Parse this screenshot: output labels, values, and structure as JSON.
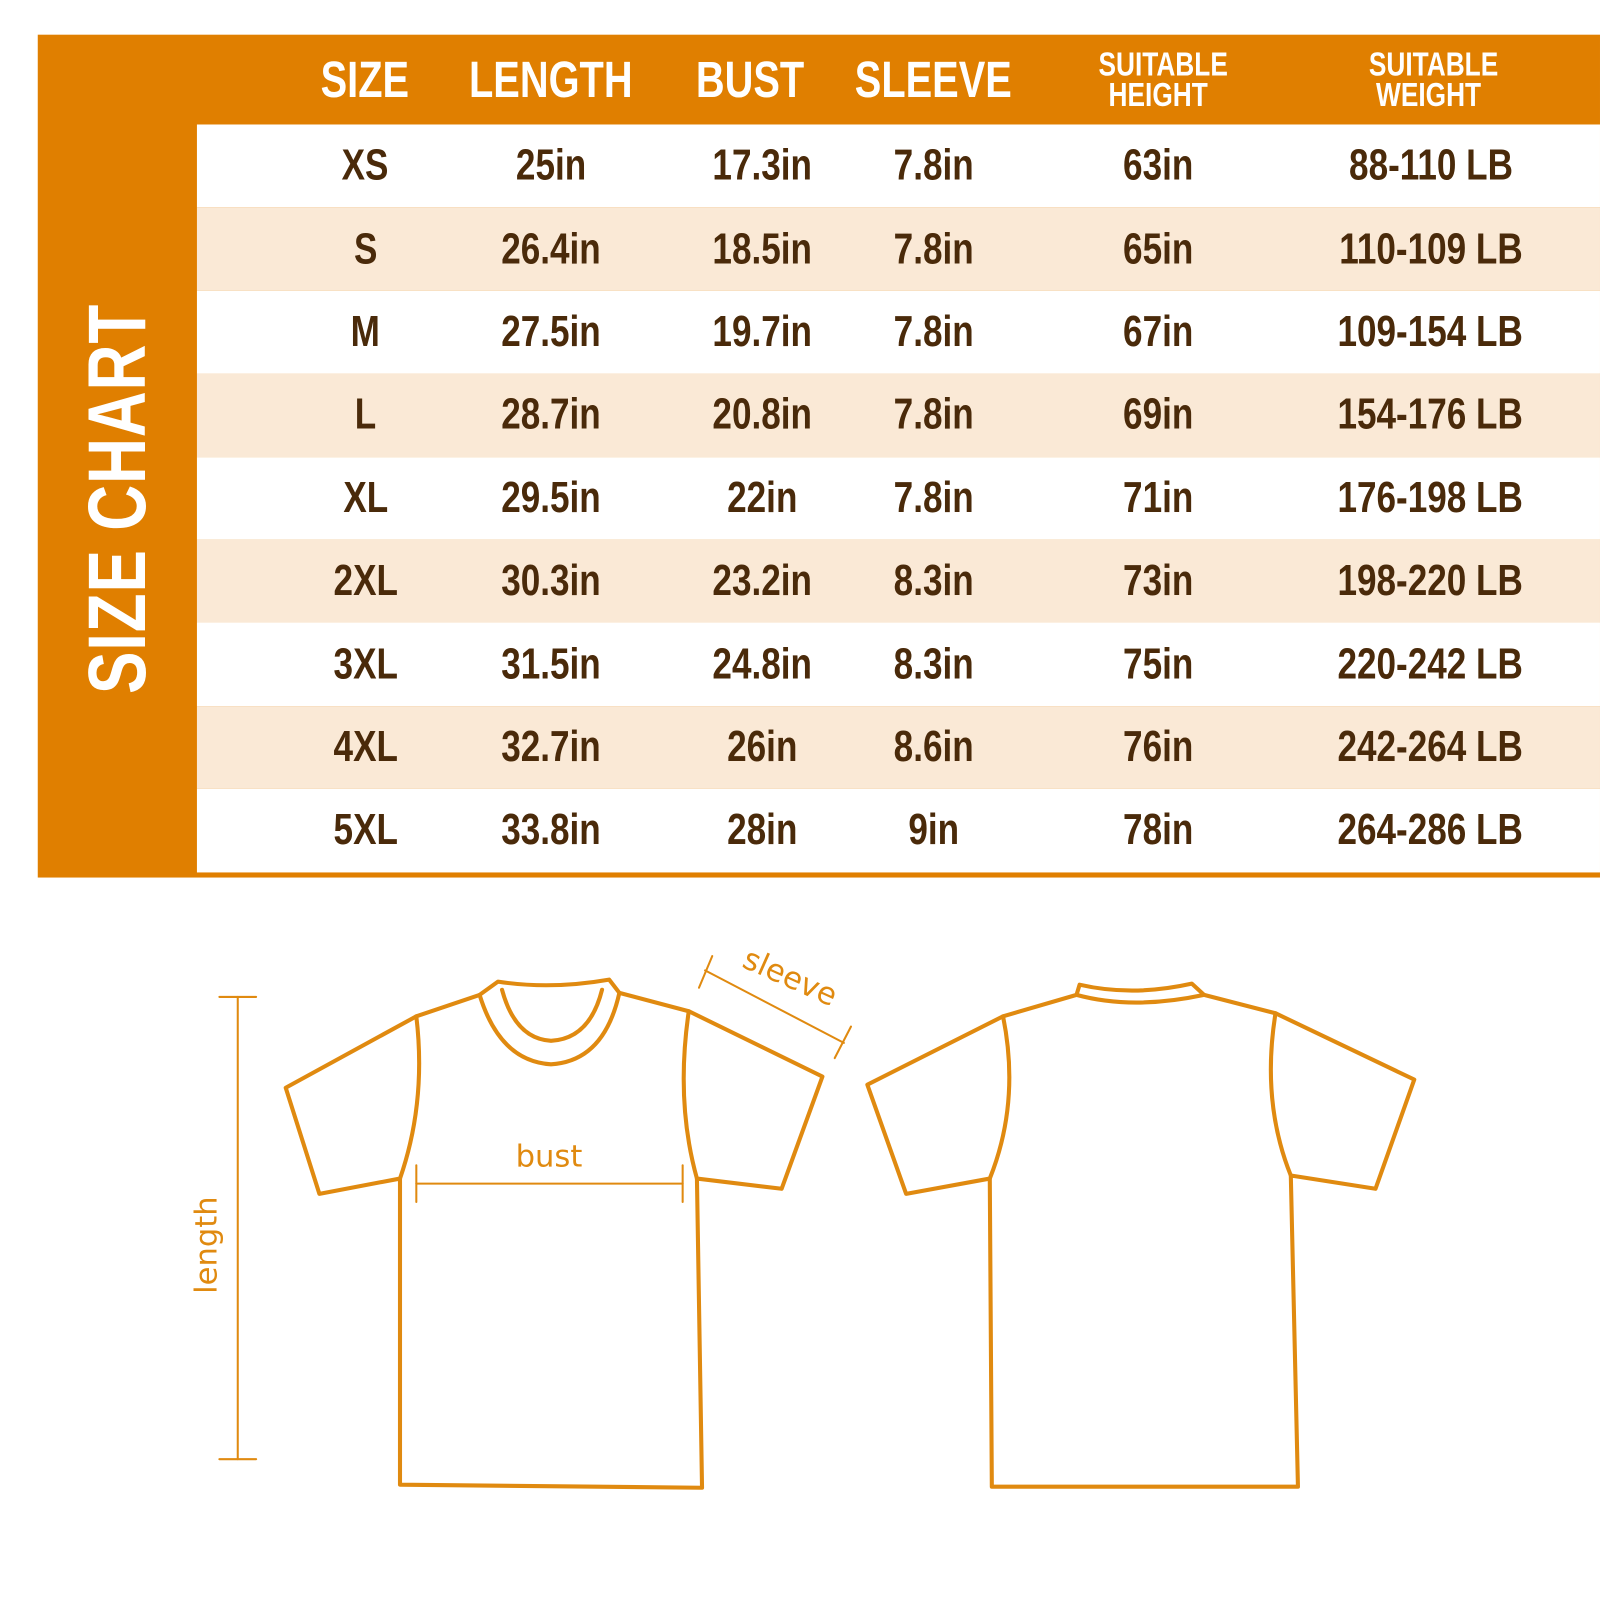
{
  "title": "SIZE CHART",
  "columns": [
    "SIZE",
    "LENGTH",
    "BUST",
    "SLEEVE",
    "SUITABLE HEIGHT",
    "SUITABLE WEIGHT"
  ],
  "rows": [
    [
      "XS",
      "25in",
      "17.3in",
      "7.8in",
      "63in",
      "88-110 LB"
    ],
    [
      "S",
      "26.4in",
      "18.5in",
      "7.8in",
      "65in",
      "110-109 LB"
    ],
    [
      "M",
      "27.5in",
      "19.7in",
      "7.8in",
      "67in",
      "109-154 LB"
    ],
    [
      "L",
      "28.7in",
      "20.8in",
      "7.8in",
      "69in",
      "154-176 LB"
    ],
    [
      "XL",
      "29.5in",
      "22in",
      "7.8in",
      "71in",
      "176-198 LB"
    ],
    [
      "2XL",
      "30.3in",
      "23.2in",
      "8.3in",
      "73in",
      "198-220 LB"
    ],
    [
      "3XL",
      "31.5in",
      "24.8in",
      "8.3in",
      "75in",
      "220-242 LB"
    ],
    [
      "4XL",
      "32.7in",
      "26in",
      "8.6in",
      "76in",
      "242-264 LB"
    ],
    [
      "5XL",
      "33.8in",
      "28in",
      "9in",
      "78in",
      "264-286 LB"
    ]
  ],
  "diagram": {
    "length_label": "length",
    "bust_label": "bust",
    "sleeve_label": "sleeve"
  },
  "colors": {
    "accent": "#e07f00",
    "stripe": "#fae9d6",
    "text": "#4a2a0a",
    "line": "#e08a10"
  }
}
